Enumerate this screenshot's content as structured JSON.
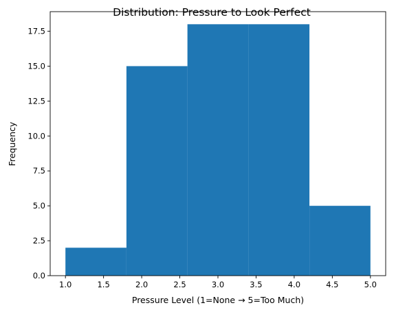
{
  "chart_data": {
    "type": "bar",
    "subtype": "histogram",
    "title": "Distribution: Pressure to Look Perfect",
    "xlabel": "Pressure Level (1=None → 5=Too Much)",
    "ylabel": "Frequency",
    "bins": [
      {
        "x0": 1.0,
        "x1": 1.8,
        "value": 2
      },
      {
        "x0": 1.8,
        "x1": 2.6,
        "value": 15
      },
      {
        "x0": 2.6,
        "x1": 3.4,
        "value": 18
      },
      {
        "x0": 3.4,
        "x1": 4.2,
        "value": 18
      },
      {
        "x0": 4.2,
        "x1": 5.0,
        "value": 5
      }
    ],
    "xlim": [
      0.8,
      5.2
    ],
    "ylim": [
      0,
      18.9
    ],
    "xticks": [
      1.0,
      1.5,
      2.0,
      2.5,
      3.0,
      3.5,
      4.0,
      4.5,
      5.0
    ],
    "xtick_labels": [
      "1.0",
      "1.5",
      "2.0",
      "2.5",
      "3.0",
      "3.5",
      "4.0",
      "4.5",
      "5.0"
    ],
    "yticks": [
      0.0,
      2.5,
      5.0,
      7.5,
      10.0,
      12.5,
      15.0,
      17.5
    ],
    "ytick_labels": [
      "0.0",
      "2.5",
      "5.0",
      "7.5",
      "10.0",
      "12.5",
      "15.0",
      "17.5"
    ],
    "bar_color": "#1f77b4",
    "grid": false
  }
}
